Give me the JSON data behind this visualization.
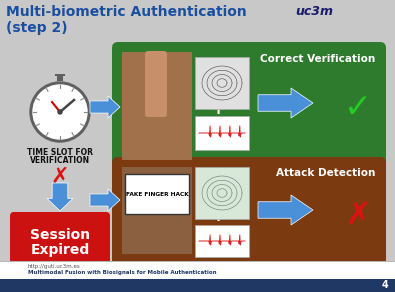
{
  "title_line1": "Multi-biometric Authentication",
  "title_line2": "(step 2)",
  "title_color": "#1a4fa0",
  "bg_color": "#C8C8C8",
  "green_box_color": "#2E7B2E",
  "brown_box_color": "#7B3A10",
  "red_box_color": "#CC1111",
  "blue_arrow_color": "#4A90D9",
  "correct_label": "Correct Verification",
  "attack_label": "Attack Detection",
  "time_label1": "TIME SLOT FOR",
  "time_label2": "VERIFICATION",
  "session_label1": "Session",
  "session_label2": "Expired",
  "footer_url": "http://guti.uc3m.es",
  "footer_text": "Multimodal Fusion with Biosignals for Mobile Authentication",
  "page_num": "4",
  "nav_bar_color": "#1F3864"
}
